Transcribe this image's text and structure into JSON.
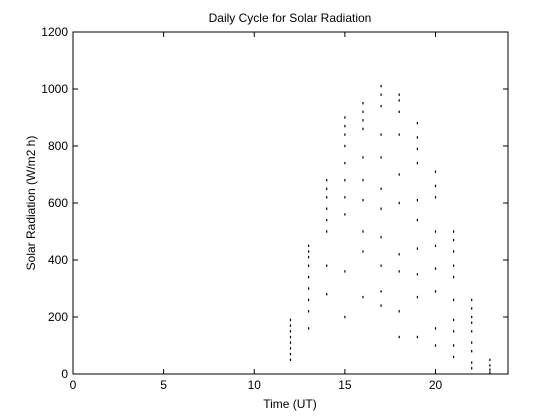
{
  "chart_data": {
    "type": "scatter",
    "title": "Daily Cycle for Solar Radiation",
    "xlabel": "Time (UT)",
    "ylabel": "Solar Radiation (W/m2 h)",
    "xlim": [
      0,
      24
    ],
    "ylim": [
      0,
      1200
    ],
    "xticks": [
      0,
      5,
      10,
      15,
      20
    ],
    "yticks": [
      0,
      200,
      400,
      600,
      800,
      1000,
      1200
    ],
    "grid": false,
    "legend": "none",
    "marker_color": "#000000",
    "series": [
      {
        "points": [
          [
            12,
            50
          ],
          [
            12,
            70
          ],
          [
            12,
            90
          ],
          [
            12,
            110
          ],
          [
            12,
            130
          ],
          [
            12,
            150
          ],
          [
            12,
            170
          ],
          [
            12,
            190
          ],
          [
            13,
            160
          ],
          [
            13,
            220
          ],
          [
            13,
            260
          ],
          [
            13,
            300
          ],
          [
            13,
            340
          ],
          [
            13,
            380
          ],
          [
            13,
            410
          ],
          [
            13,
            430
          ],
          [
            13,
            450
          ],
          [
            14,
            280
          ],
          [
            14,
            380
          ],
          [
            14,
            500
          ],
          [
            14,
            540
          ],
          [
            14,
            580
          ],
          [
            14,
            620
          ],
          [
            14,
            650
          ],
          [
            14,
            680
          ],
          [
            15,
            200
          ],
          [
            15,
            360
          ],
          [
            15,
            560
          ],
          [
            15,
            620
          ],
          [
            15,
            680
          ],
          [
            15,
            740
          ],
          [
            15,
            800
          ],
          [
            15,
            840
          ],
          [
            15,
            870
          ],
          [
            15,
            900
          ],
          [
            16,
            270
          ],
          [
            16,
            430
          ],
          [
            16,
            500
          ],
          [
            16,
            610
          ],
          [
            16,
            680
          ],
          [
            16,
            760
          ],
          [
            16,
            860
          ],
          [
            16,
            890
          ],
          [
            16,
            920
          ],
          [
            16,
            950
          ],
          [
            17,
            240
          ],
          [
            17,
            290
          ],
          [
            17,
            380
          ],
          [
            17,
            480
          ],
          [
            17,
            580
          ],
          [
            17,
            650
          ],
          [
            17,
            760
          ],
          [
            17,
            840
          ],
          [
            17,
            940
          ],
          [
            17,
            980
          ],
          [
            17,
            1010
          ],
          [
            18,
            130
          ],
          [
            18,
            220
          ],
          [
            18,
            360
          ],
          [
            18,
            420
          ],
          [
            18,
            600
          ],
          [
            18,
            700
          ],
          [
            18,
            840
          ],
          [
            18,
            920
          ],
          [
            18,
            960
          ],
          [
            18,
            980
          ],
          [
            19,
            130
          ],
          [
            19,
            270
          ],
          [
            19,
            350
          ],
          [
            19,
            440
          ],
          [
            19,
            540
          ],
          [
            19,
            610
          ],
          [
            19,
            740
          ],
          [
            19,
            790
          ],
          [
            19,
            830
          ],
          [
            19,
            880
          ],
          [
            20,
            100
          ],
          [
            20,
            160
          ],
          [
            20,
            290
          ],
          [
            20,
            370
          ],
          [
            20,
            450
          ],
          [
            20,
            500
          ],
          [
            20,
            620
          ],
          [
            20,
            660
          ],
          [
            20,
            710
          ],
          [
            21,
            60
          ],
          [
            21,
            100
          ],
          [
            21,
            150
          ],
          [
            21,
            190
          ],
          [
            21,
            260
          ],
          [
            21,
            340
          ],
          [
            21,
            380
          ],
          [
            21,
            430
          ],
          [
            21,
            470
          ],
          [
            21,
            500
          ],
          [
            22,
            20
          ],
          [
            22,
            40
          ],
          [
            22,
            80
          ],
          [
            22,
            110
          ],
          [
            22,
            150
          ],
          [
            22,
            180
          ],
          [
            22,
            200
          ],
          [
            22,
            230
          ],
          [
            22,
            260
          ],
          [
            23,
            5
          ],
          [
            23,
            15
          ],
          [
            23,
            30
          ],
          [
            23,
            50
          ]
        ]
      }
    ]
  }
}
